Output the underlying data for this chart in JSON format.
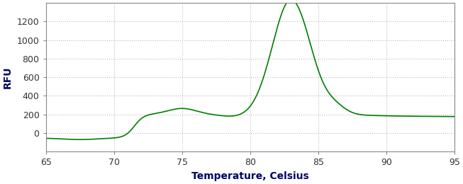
{
  "xlabel": "Temperature, Celsius",
  "ylabel": "RFU",
  "xlim": [
    65,
    95
  ],
  "ylim": [
    -200,
    1400
  ],
  "yticks": [
    0,
    200,
    400,
    600,
    800,
    1000,
    1200
  ],
  "xticks": [
    65,
    70,
    75,
    80,
    85,
    90,
    95
  ],
  "line_color": "#008000",
  "background_color": "#ffffff",
  "grid_color": "#aaaaaa",
  "xlabel_fontsize": 10,
  "ylabel_fontsize": 10,
  "tick_label_color": "#333333",
  "axis_label_color": "#000066",
  "tick_fontsize": 9
}
